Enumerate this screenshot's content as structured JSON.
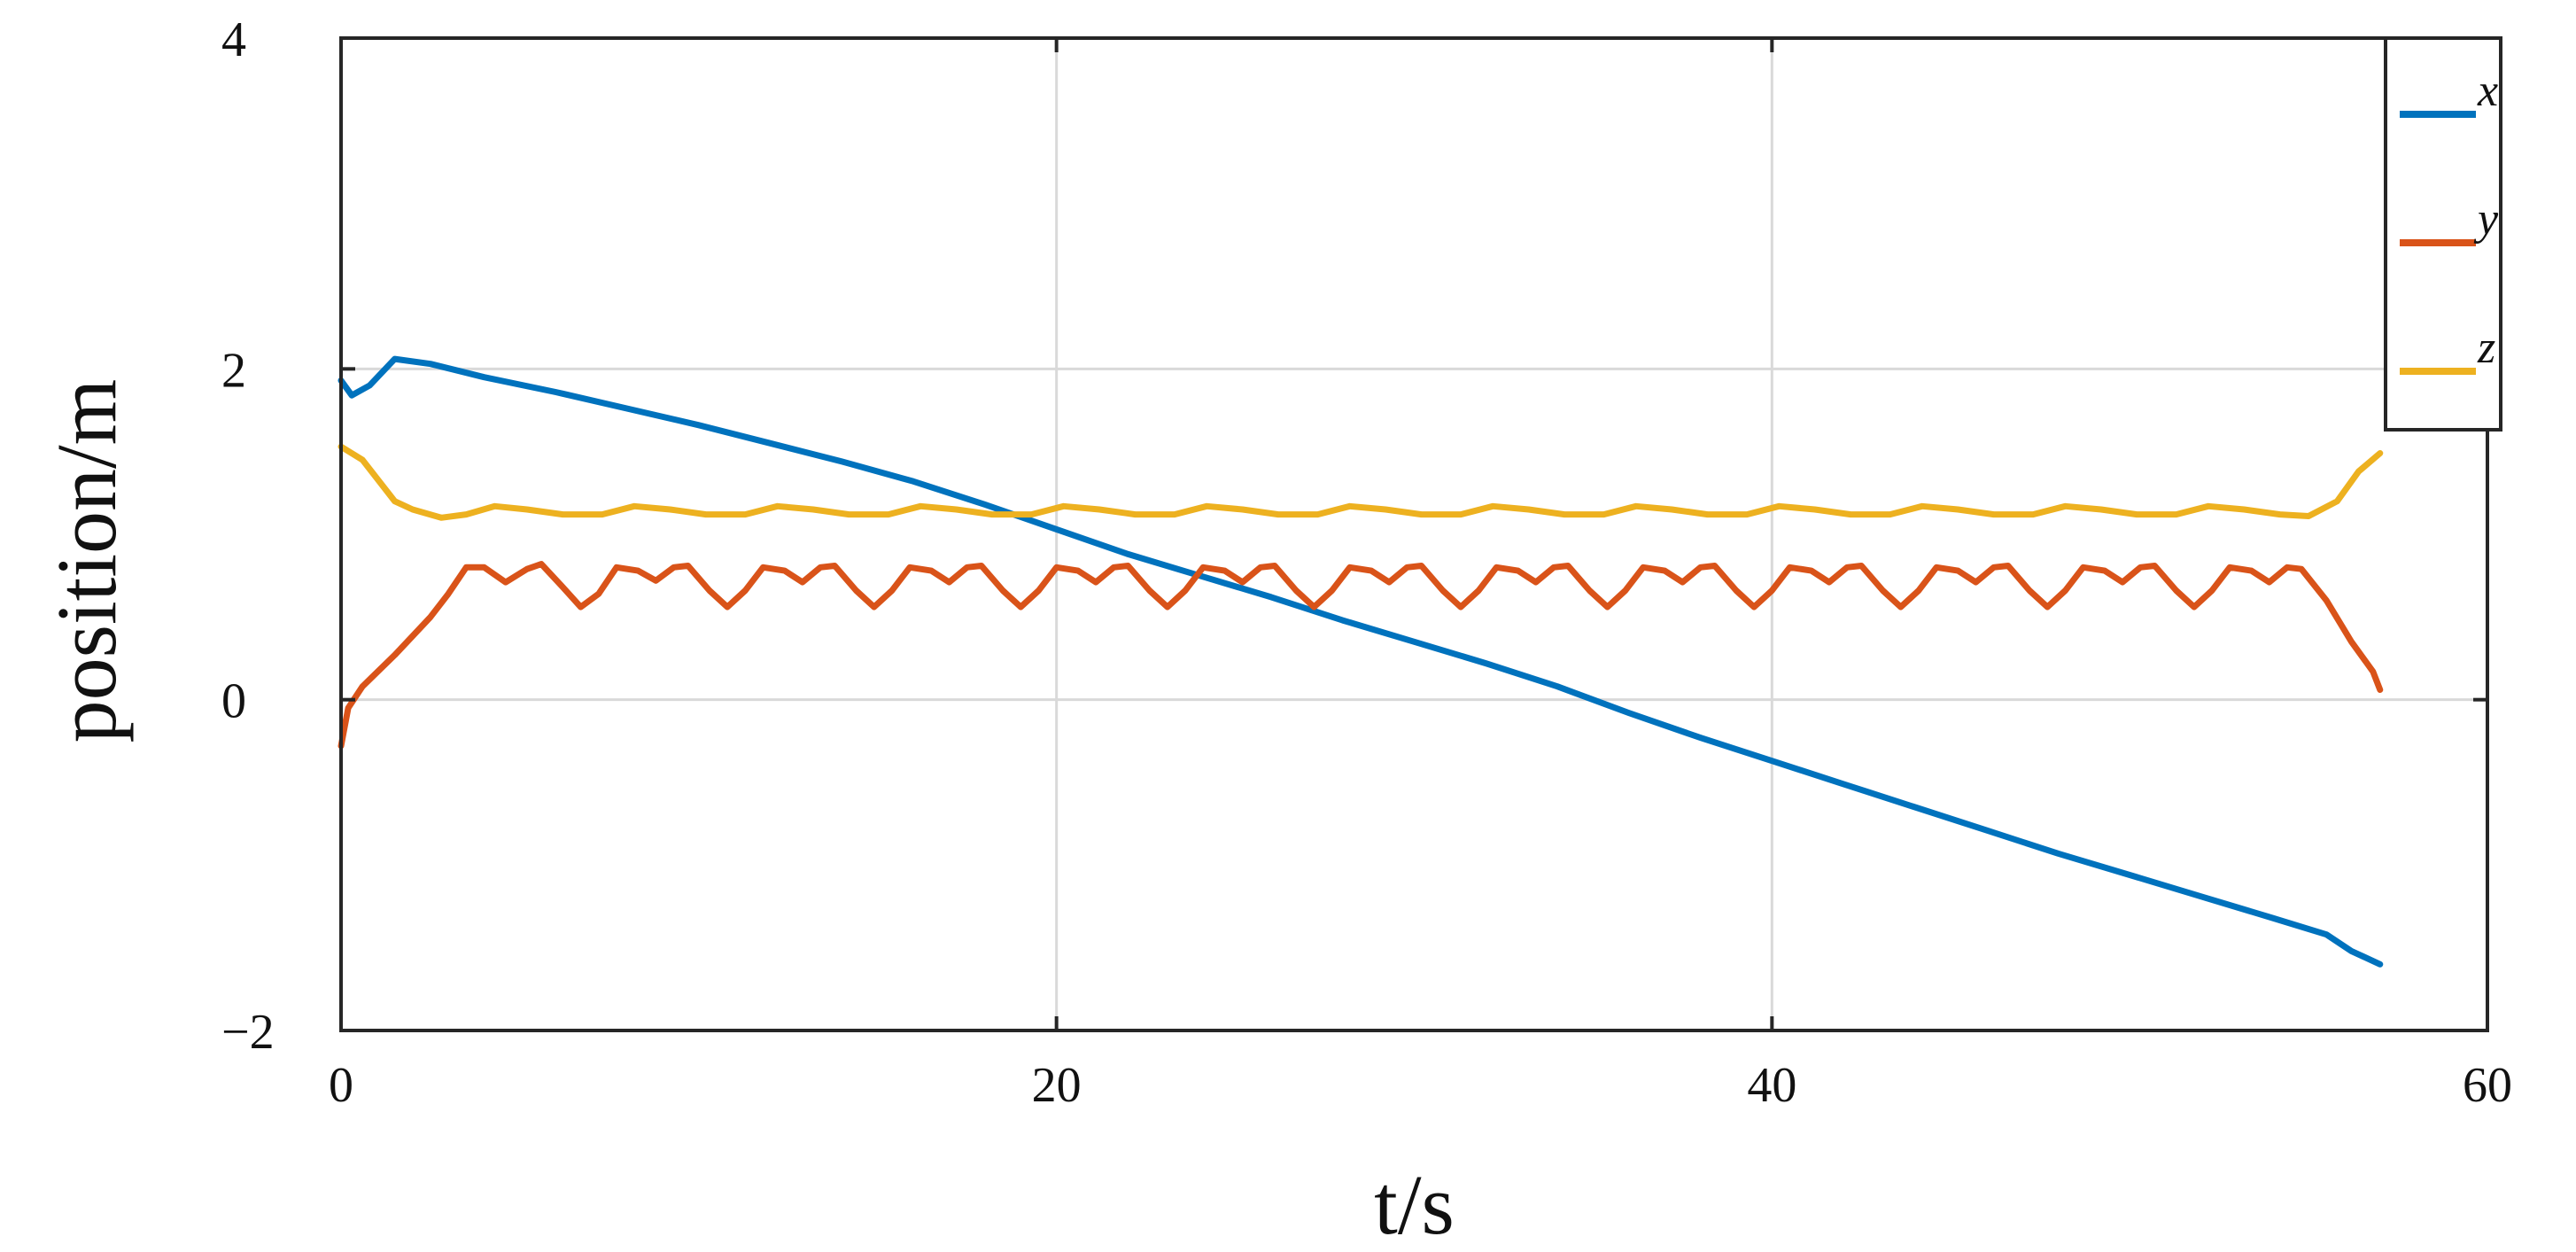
{
  "chart_data": {
    "type": "line",
    "title": "",
    "xlabel": "t/s",
    "ylabel": "position/m",
    "xlim": [
      0,
      60
    ],
    "ylim": [
      -2,
      4
    ],
    "xticks": [
      0,
      20,
      40,
      60
    ],
    "xtick_labels": [
      "0",
      "20",
      "40",
      "60"
    ],
    "yticks": [
      -2,
      0,
      2,
      4
    ],
    "ytick_labels": [
      "−2",
      "0",
      "2",
      "4"
    ],
    "grid": true,
    "legend_position": "top-right",
    "series": [
      {
        "name": "x",
        "color": "#0072BD",
        "points": [
          [
            0,
            1.93
          ],
          [
            0.3,
            1.84
          ],
          [
            0.8,
            1.9
          ],
          [
            1.5,
            2.06
          ],
          [
            2.5,
            2.03
          ],
          [
            4,
            1.95
          ],
          [
            6,
            1.86
          ],
          [
            8,
            1.76
          ],
          [
            10,
            1.66
          ],
          [
            12,
            1.55
          ],
          [
            14,
            1.44
          ],
          [
            16,
            1.32
          ],
          [
            18,
            1.18
          ],
          [
            20,
            1.03
          ],
          [
            22,
            0.88
          ],
          [
            24,
            0.75
          ],
          [
            26,
            0.62
          ],
          [
            28,
            0.48
          ],
          [
            30,
            0.35
          ],
          [
            32,
            0.22
          ],
          [
            34,
            0.08
          ],
          [
            36,
            -0.08
          ],
          [
            38,
            -0.23
          ],
          [
            40,
            -0.37
          ],
          [
            42,
            -0.51
          ],
          [
            44,
            -0.65
          ],
          [
            46,
            -0.79
          ],
          [
            48,
            -0.93
          ],
          [
            50,
            -1.06
          ],
          [
            52,
            -1.19
          ],
          [
            54,
            -1.32
          ],
          [
            55.5,
            -1.42
          ],
          [
            56.2,
            -1.52
          ],
          [
            57,
            -1.6
          ]
        ]
      },
      {
        "name": "y",
        "color": "#D95319",
        "points": [
          [
            0,
            -0.28
          ],
          [
            0.2,
            -0.05
          ],
          [
            0.6,
            0.08
          ],
          [
            1.5,
            0.27
          ],
          [
            2.5,
            0.5
          ],
          [
            3,
            0.64
          ],
          [
            3.5,
            0.8
          ],
          [
            4,
            0.8
          ],
          [
            4.6,
            0.71
          ],
          [
            5.2,
            0.79
          ],
          [
            5.6,
            0.82
          ],
          [
            6.2,
            0.68
          ],
          [
            6.7,
            0.56
          ],
          [
            7.2,
            0.64
          ],
          [
            7.7,
            0.8
          ],
          [
            8.3,
            0.78
          ],
          [
            8.8,
            0.72
          ],
          [
            9.3,
            0.8
          ],
          [
            9.7,
            0.81
          ],
          [
            10.3,
            0.66
          ],
          [
            10.8,
            0.56
          ],
          [
            11.3,
            0.66
          ],
          [
            11.8,
            0.8
          ],
          [
            12.4,
            0.78
          ],
          [
            12.9,
            0.71
          ],
          [
            13.4,
            0.8
          ],
          [
            13.8,
            0.81
          ],
          [
            14.4,
            0.66
          ],
          [
            14.9,
            0.56
          ],
          [
            15.4,
            0.66
          ],
          [
            15.9,
            0.8
          ],
          [
            16.5,
            0.78
          ],
          [
            17,
            0.71
          ],
          [
            17.5,
            0.8
          ],
          [
            17.9,
            0.81
          ],
          [
            18.5,
            0.66
          ],
          [
            19,
            0.56
          ],
          [
            19.5,
            0.66
          ],
          [
            20,
            0.8
          ],
          [
            20.6,
            0.78
          ],
          [
            21.1,
            0.71
          ],
          [
            21.6,
            0.8
          ],
          [
            22,
            0.81
          ],
          [
            22.6,
            0.66
          ],
          [
            23.1,
            0.56
          ],
          [
            23.6,
            0.66
          ],
          [
            24.1,
            0.8
          ],
          [
            24.7,
            0.78
          ],
          [
            25.2,
            0.71
          ],
          [
            25.7,
            0.8
          ],
          [
            26.1,
            0.81
          ],
          [
            26.7,
            0.66
          ],
          [
            27.2,
            0.56
          ],
          [
            27.7,
            0.66
          ],
          [
            28.2,
            0.8
          ],
          [
            28.8,
            0.78
          ],
          [
            29.3,
            0.71
          ],
          [
            29.8,
            0.8
          ],
          [
            30.2,
            0.81
          ],
          [
            30.8,
            0.66
          ],
          [
            31.3,
            0.56
          ],
          [
            31.8,
            0.66
          ],
          [
            32.3,
            0.8
          ],
          [
            32.9,
            0.78
          ],
          [
            33.4,
            0.71
          ],
          [
            33.9,
            0.8
          ],
          [
            34.3,
            0.81
          ],
          [
            34.9,
            0.66
          ],
          [
            35.4,
            0.56
          ],
          [
            35.9,
            0.66
          ],
          [
            36.4,
            0.8
          ],
          [
            37,
            0.78
          ],
          [
            37.5,
            0.71
          ],
          [
            38,
            0.8
          ],
          [
            38.4,
            0.81
          ],
          [
            39,
            0.66
          ],
          [
            39.5,
            0.56
          ],
          [
            40,
            0.66
          ],
          [
            40.5,
            0.8
          ],
          [
            41.1,
            0.78
          ],
          [
            41.6,
            0.71
          ],
          [
            42.1,
            0.8
          ],
          [
            42.5,
            0.81
          ],
          [
            43.1,
            0.66
          ],
          [
            43.6,
            0.56
          ],
          [
            44.1,
            0.66
          ],
          [
            44.6,
            0.8
          ],
          [
            45.2,
            0.78
          ],
          [
            45.7,
            0.71
          ],
          [
            46.2,
            0.8
          ],
          [
            46.6,
            0.81
          ],
          [
            47.2,
            0.66
          ],
          [
            47.7,
            0.56
          ],
          [
            48.2,
            0.66
          ],
          [
            48.7,
            0.8
          ],
          [
            49.3,
            0.78
          ],
          [
            49.8,
            0.71
          ],
          [
            50.3,
            0.8
          ],
          [
            50.7,
            0.81
          ],
          [
            51.3,
            0.66
          ],
          [
            51.8,
            0.56
          ],
          [
            52.3,
            0.66
          ],
          [
            52.8,
            0.8
          ],
          [
            53.4,
            0.78
          ],
          [
            53.9,
            0.71
          ],
          [
            54.4,
            0.8
          ],
          [
            54.8,
            0.79
          ],
          [
            55.5,
            0.6
          ],
          [
            56.2,
            0.35
          ],
          [
            56.8,
            0.17
          ],
          [
            57,
            0.06
          ]
        ]
      },
      {
        "name": "z",
        "color": "#EDB120",
        "points": [
          [
            0,
            1.53
          ],
          [
            0.6,
            1.45
          ],
          [
            1.5,
            1.2
          ],
          [
            2,
            1.15
          ],
          [
            2.8,
            1.1
          ],
          [
            3.5,
            1.12
          ],
          [
            4.3,
            1.17
          ],
          [
            5.2,
            1.15
          ],
          [
            6.2,
            1.12
          ],
          [
            7.3,
            1.12
          ],
          [
            8.2,
            1.17
          ],
          [
            9.2,
            1.15
          ],
          [
            10.2,
            1.12
          ],
          [
            11.3,
            1.12
          ],
          [
            12.2,
            1.17
          ],
          [
            13.2,
            1.15
          ],
          [
            14.2,
            1.12
          ],
          [
            15.3,
            1.12
          ],
          [
            16.2,
            1.17
          ],
          [
            17.2,
            1.15
          ],
          [
            18.2,
            1.12
          ],
          [
            19.3,
            1.12
          ],
          [
            20.2,
            1.17
          ],
          [
            21.2,
            1.15
          ],
          [
            22.2,
            1.12
          ],
          [
            23.3,
            1.12
          ],
          [
            24.2,
            1.17
          ],
          [
            25.2,
            1.15
          ],
          [
            26.2,
            1.12
          ],
          [
            27.3,
            1.12
          ],
          [
            28.2,
            1.17
          ],
          [
            29.2,
            1.15
          ],
          [
            30.2,
            1.12
          ],
          [
            31.3,
            1.12
          ],
          [
            32.2,
            1.17
          ],
          [
            33.2,
            1.15
          ],
          [
            34.2,
            1.12
          ],
          [
            35.3,
            1.12
          ],
          [
            36.2,
            1.17
          ],
          [
            37.2,
            1.15
          ],
          [
            38.2,
            1.12
          ],
          [
            39.3,
            1.12
          ],
          [
            40.2,
            1.17
          ],
          [
            41.2,
            1.15
          ],
          [
            42.2,
            1.12
          ],
          [
            43.3,
            1.12
          ],
          [
            44.2,
            1.17
          ],
          [
            45.2,
            1.15
          ],
          [
            46.2,
            1.12
          ],
          [
            47.3,
            1.12
          ],
          [
            48.2,
            1.17
          ],
          [
            49.2,
            1.15
          ],
          [
            50.2,
            1.12
          ],
          [
            51.3,
            1.12
          ],
          [
            52.2,
            1.17
          ],
          [
            53.2,
            1.15
          ],
          [
            54.2,
            1.12
          ],
          [
            55,
            1.11
          ],
          [
            55.8,
            1.2
          ],
          [
            56.4,
            1.38
          ],
          [
            57,
            1.49
          ]
        ]
      }
    ]
  }
}
